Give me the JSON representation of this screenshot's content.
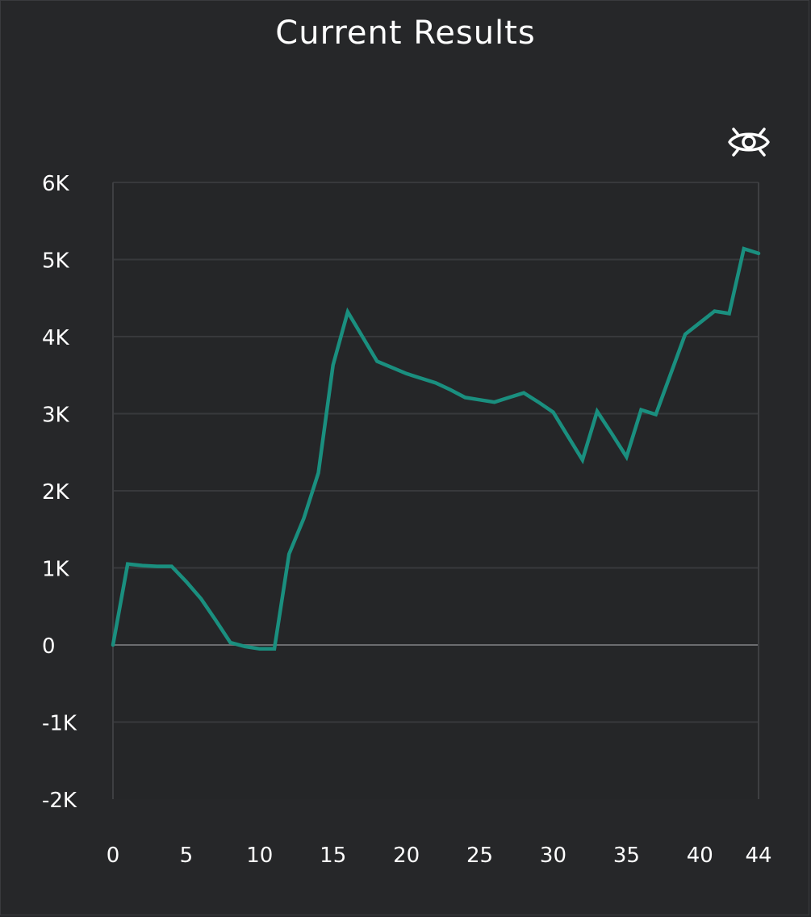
{
  "chart_data": {
    "type": "line",
    "title": "Current Results",
    "xlabel": "",
    "ylabel": "",
    "xlim": [
      0,
      44
    ],
    "ylim": [
      -2000,
      6000
    ],
    "x_ticks": [
      0,
      5,
      10,
      15,
      20,
      25,
      30,
      35,
      40,
      44
    ],
    "x_tick_labels": [
      "0",
      "5",
      "10",
      "15",
      "20",
      "25",
      "30",
      "35",
      "40",
      "44"
    ],
    "y_ticks": [
      6000,
      5000,
      4000,
      3000,
      2000,
      1000,
      0,
      -1000,
      -2000
    ],
    "y_tick_labels": [
      "6K",
      "5K",
      "4K",
      "3K",
      "2K",
      "1K",
      "0",
      "-1K",
      "-2K"
    ],
    "grid": true,
    "legend": "none",
    "series": [
      {
        "color": "#1a8f7f",
        "x": [
          0,
          1,
          2,
          3,
          4,
          5,
          6,
          7,
          8,
          9,
          10,
          11,
          12,
          13,
          14,
          15,
          16,
          17,
          18,
          19,
          20,
          21,
          22,
          23,
          24,
          25,
          26,
          27,
          28,
          29,
          30,
          31,
          32,
          33,
          34,
          35,
          36,
          37,
          38,
          39,
          40,
          41,
          42,
          43,
          44
        ],
        "y": [
          0,
          1050,
          1030,
          1020,
          1020,
          820,
          600,
          320,
          30,
          -20,
          -50,
          -50,
          1180,
          1640,
          2230,
          3630,
          4320,
          4000,
          3680,
          3600,
          3520,
          3460,
          3400,
          3310,
          3210,
          3180,
          3150,
          3210,
          3270,
          3150,
          3020,
          2710,
          2400,
          3030,
          2740,
          2440,
          3050,
          2990,
          3510,
          4030,
          4180,
          4330,
          4300,
          5140,
          5080
        ]
      }
    ]
  },
  "controls": {
    "visibility_toggle_icon": "eye-slash-icon"
  }
}
